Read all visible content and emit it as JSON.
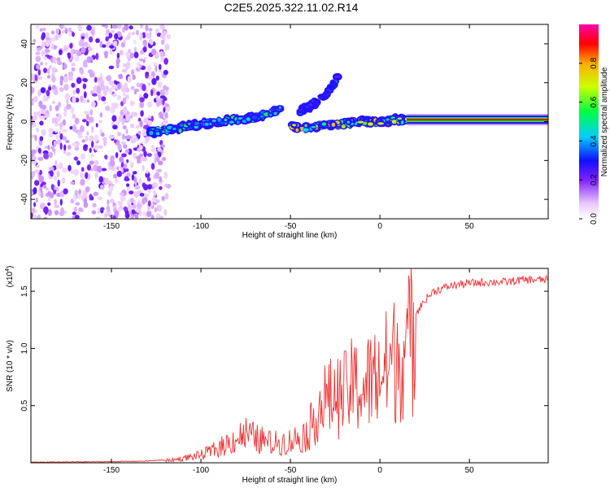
{
  "title": "C2E5.2025.322.11.02.R14",
  "colors": {
    "axis": "#000000",
    "snr_line": "#ee3333",
    "spectrogram_low": "#dcc8f8",
    "spectrogram_high": "#ff0000"
  },
  "chart_data": [
    {
      "type": "heatmap",
      "name": "spectrogram",
      "xlabel": "Height of straight line (km)",
      "ylabel": "Frequency (Hz)",
      "xlim": [
        -195,
        94
      ],
      "ylim": [
        -50,
        50
      ],
      "xticks": [
        -150,
        -100,
        -50,
        0,
        50
      ],
      "yticks": [
        -40,
        -20,
        0,
        20,
        40
      ],
      "colorbar": {
        "label": "Normalized spectral amplitude",
        "range": [
          0.0,
          1.0
        ],
        "ticks": [
          "0.0",
          "0.2",
          "0.4",
          "0.6",
          "0.8"
        ],
        "colormap": "purple-blue-cyan-green-yellow-red"
      },
      "features": [
        {
          "name": "noise-scatter",
          "x_range": [
            -195,
            -118
          ],
          "freq_range": [
            -50,
            50
          ],
          "amplitude": 0.15
        },
        {
          "name": "main-trace",
          "x": [
            -130,
            -110,
            -90,
            -70,
            -55
          ],
          "freq": [
            -6,
            -3,
            0,
            2,
            6
          ],
          "amplitude": 0.45
        },
        {
          "name": "upper-branch",
          "x": [
            -45,
            -35,
            -28,
            -22
          ],
          "freq": [
            5,
            10,
            16,
            24
          ],
          "amplitude": 0.3
        },
        {
          "name": "lower-branch",
          "x": [
            -50,
            -40,
            -30,
            -20,
            -10,
            0,
            10,
            20
          ],
          "freq": [
            -3,
            -3,
            -2,
            -1,
            0,
            0,
            1,
            1
          ],
          "amplitude": 0.6
        },
        {
          "name": "carrier",
          "x_range": [
            15,
            94
          ],
          "freq": 1,
          "amplitude": 0.95
        }
      ]
    },
    {
      "type": "line",
      "name": "snr",
      "xlabel": "Height of straight line (km)",
      "ylabel": "SNR (10 * v/v)",
      "scale_label": "(x10",
      "scale_exp": "4",
      "xlim": [
        -195,
        94
      ],
      "ylim": [
        0,
        1.7
      ],
      "xticks": [
        -150,
        -100,
        -50,
        0,
        50
      ],
      "yticks": [
        "0.5",
        "1.0",
        "1.5"
      ],
      "series": [
        {
          "name": "SNR",
          "x": [
            -195,
            -170,
            -150,
            -130,
            -115,
            -100,
            -90,
            -80,
            -75,
            -70,
            -60,
            -50,
            -40,
            -35,
            -30,
            -20,
            -15,
            -10,
            -5,
            0,
            5,
            10,
            15,
            20,
            25,
            30,
            40,
            50,
            60,
            70,
            80,
            90,
            94
          ],
          "y": [
            0.005,
            0.008,
            0.01,
            0.015,
            0.03,
            0.08,
            0.15,
            0.25,
            0.3,
            0.25,
            0.2,
            0.22,
            0.3,
            0.55,
            0.65,
            0.7,
            0.8,
            0.75,
            0.85,
            0.9,
            1.0,
            1.1,
            1.2,
            1.3,
            1.42,
            1.5,
            1.55,
            1.57,
            1.58,
            1.58,
            1.6,
            1.6,
            1.6
          ]
        }
      ]
    }
  ]
}
